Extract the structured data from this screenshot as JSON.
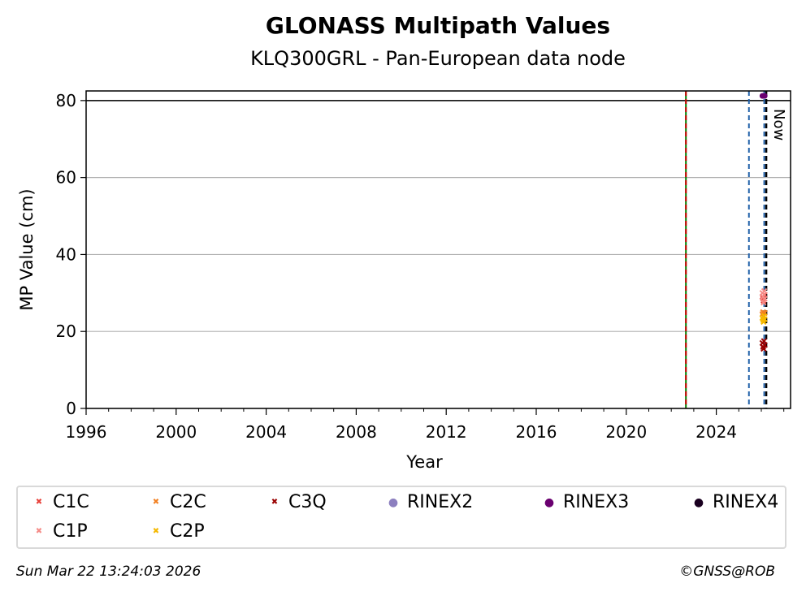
{
  "chart_data": {
    "type": "scatter",
    "title": "GLONASS Multipath Values",
    "subtitle": "KLQ300GRL - Pan-European data node",
    "xlabel": "Year",
    "ylabel": "MP Value (cm)",
    "xlim": [
      1996,
      2027.3
    ],
    "ylim": [
      0,
      82.5
    ],
    "xticks": [
      "1996",
      "2000",
      "2004",
      "2008",
      "2012",
      "2016",
      "2020",
      "2024"
    ],
    "yticks": [
      "0",
      "20",
      "40",
      "60",
      "80"
    ],
    "grid": "horizontal",
    "reference_line_y": 80,
    "vertical_lines": [
      {
        "x": 2022.65,
        "color": "#008000",
        "style": "solid"
      },
      {
        "x": 2022.65,
        "color": "#cc0000",
        "style": "dashed"
      },
      {
        "x": 2025.45,
        "color": "#1f5fa8",
        "style": "dashed"
      },
      {
        "x": 2026.13,
        "color": "#1f5fa8",
        "style": "dashed"
      },
      {
        "x": 2026.22,
        "color": "#000000",
        "style": "dashed",
        "label": "Now"
      }
    ],
    "series": [
      {
        "name": "C1C",
        "color": "#e8413a",
        "marker": "x",
        "points": [
          [
            2026.05,
            29.0
          ],
          [
            2026.08,
            28.5
          ],
          [
            2026.1,
            28.0
          ],
          [
            2026.15,
            29.5
          ]
        ]
      },
      {
        "name": "C2C",
        "color": "#f28022",
        "marker": "x",
        "points": [
          [
            2026.05,
            24.5
          ],
          [
            2026.08,
            25.0
          ],
          [
            2026.1,
            24.0
          ],
          [
            2026.15,
            24.8
          ]
        ]
      },
      {
        "name": "C3Q",
        "color": "#990000",
        "marker": "x",
        "points": [
          [
            2026.05,
            17.0
          ],
          [
            2026.08,
            16.0
          ],
          [
            2026.1,
            15.5
          ],
          [
            2026.12,
            17.5
          ],
          [
            2026.15,
            16.5
          ]
        ]
      },
      {
        "name": "RINEX2",
        "color": "#8c7fbf",
        "marker": "o",
        "points": []
      },
      {
        "name": "RINEX3",
        "color": "#6a0070",
        "marker": "o",
        "points": [
          [
            2026.05,
            81.2
          ],
          [
            2026.1,
            81.2
          ],
          [
            2026.15,
            81.2
          ]
        ]
      },
      {
        "name": "RINEX4",
        "color": "#1a0020",
        "marker": "o",
        "points": []
      },
      {
        "name": "C1P",
        "color": "#f58b87",
        "marker": "x",
        "points": [
          [
            2026.05,
            30.0
          ],
          [
            2026.08,
            29.0
          ],
          [
            2026.1,
            27.5
          ],
          [
            2026.13,
            30.5
          ],
          [
            2026.15,
            28.5
          ]
        ]
      },
      {
        "name": "C2P",
        "color": "#f5b800",
        "marker": "x",
        "points": [
          [
            2026.05,
            23.5
          ],
          [
            2026.08,
            23.0
          ],
          [
            2026.1,
            22.5
          ],
          [
            2026.13,
            24.0
          ],
          [
            2026.15,
            23.2
          ]
        ]
      }
    ]
  },
  "footer": {
    "timestamp": "Sun Mar 22 13:24:03 2026",
    "credit": "©GNSS@ROB"
  }
}
